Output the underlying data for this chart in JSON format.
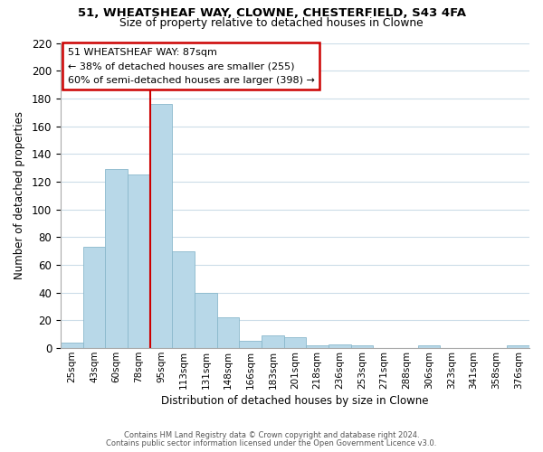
{
  "title1": "51, WHEATSHEAF WAY, CLOWNE, CHESTERFIELD, S43 4FA",
  "title2": "Size of property relative to detached houses in Clowne",
  "xlabel": "Distribution of detached houses by size in Clowne",
  "ylabel": "Number of detached properties",
  "bar_values": [
    4,
    73,
    129,
    125,
    176,
    70,
    40,
    22,
    5,
    9,
    8,
    2,
    3,
    2,
    0,
    0,
    2,
    0,
    0,
    0,
    2
  ],
  "bar_labels": [
    "25sqm",
    "43sqm",
    "60sqm",
    "78sqm",
    "95sqm",
    "113sqm",
    "131sqm",
    "148sqm",
    "166sqm",
    "183sqm",
    "201sqm",
    "218sqm",
    "236sqm",
    "253sqm",
    "271sqm",
    "288sqm",
    "306sqm",
    "323sqm",
    "341sqm",
    "358sqm",
    "376sqm"
  ],
  "bar_color": "#b8d8e8",
  "bar_edge_color": "#8ab8cc",
  "ylim": [
    0,
    220
  ],
  "yticks": [
    0,
    20,
    40,
    60,
    80,
    100,
    120,
    140,
    160,
    180,
    200,
    220
  ],
  "vline_pos": 3.5,
  "vline_color": "#cc0000",
  "annotation_line1": "51 WHEATSHEAF WAY: 87sqm",
  "annotation_line2": "← 38% of detached houses are smaller (255)",
  "annotation_line3": "60% of semi-detached houses are larger (398) →",
  "annotation_box_edge": "#cc0000",
  "footer1": "Contains HM Land Registry data © Crown copyright and database right 2024.",
  "footer2": "Contains public sector information licensed under the Open Government Licence v3.0.",
  "background_color": "#ffffff",
  "grid_color": "#ccdde8"
}
